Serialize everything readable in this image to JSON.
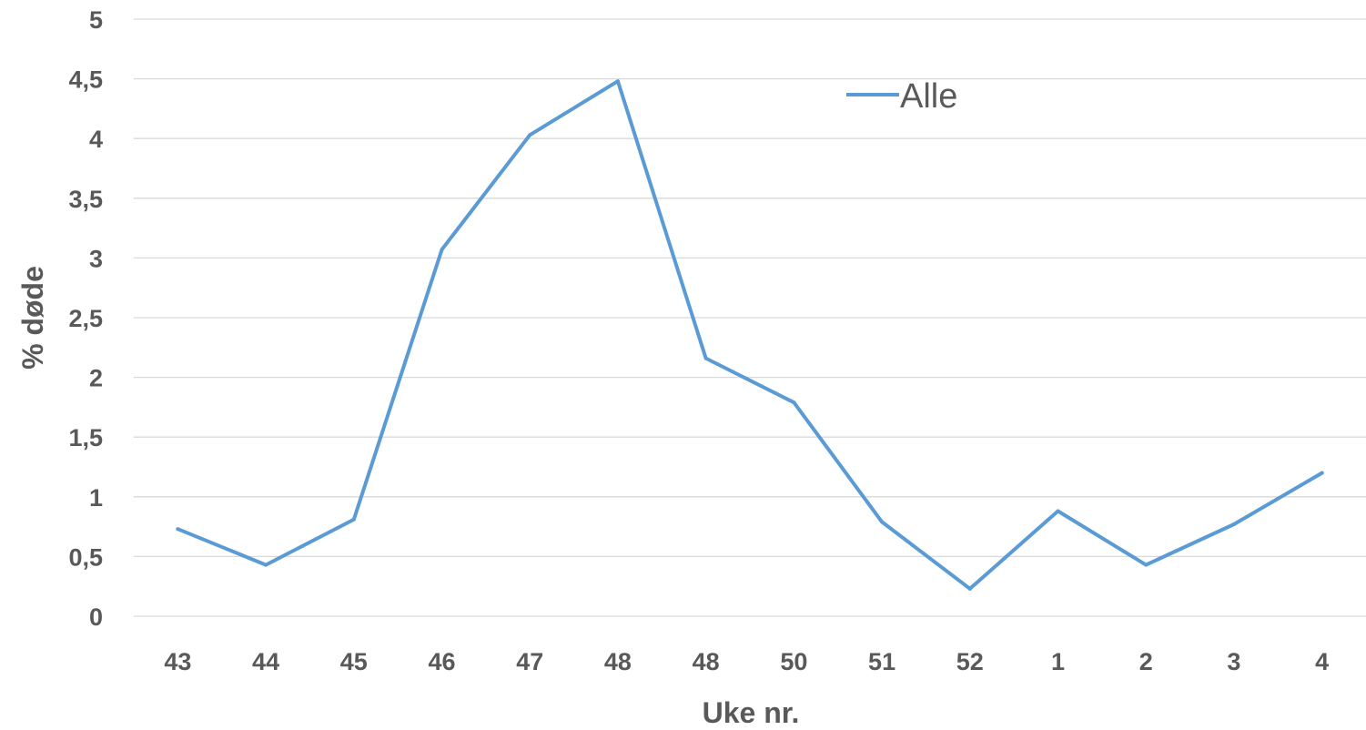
{
  "chart_data": {
    "type": "line",
    "categories": [
      "43",
      "44",
      "45",
      "46",
      "47",
      "48",
      "48",
      "50",
      "51",
      "52",
      "1",
      "2",
      "3",
      "4"
    ],
    "series": [
      {
        "name": "Alle",
        "values": [
          0.73,
          0.43,
          0.81,
          3.07,
          4.03,
          4.48,
          2.16,
          1.79,
          0.79,
          0.23,
          0.88,
          0.43,
          0.77,
          1.2
        ],
        "color": "#5b9bd5"
      }
    ],
    "xlabel": "Uke nr.",
    "ylabel": "% døde",
    "ylim": [
      0,
      5
    ],
    "yticks": [
      "0",
      "0,5",
      "1",
      "1,5",
      "2",
      "2,5",
      "3",
      "3,5",
      "4",
      "4,5",
      "5"
    ],
    "grid": true,
    "legend_position": "top-center"
  }
}
